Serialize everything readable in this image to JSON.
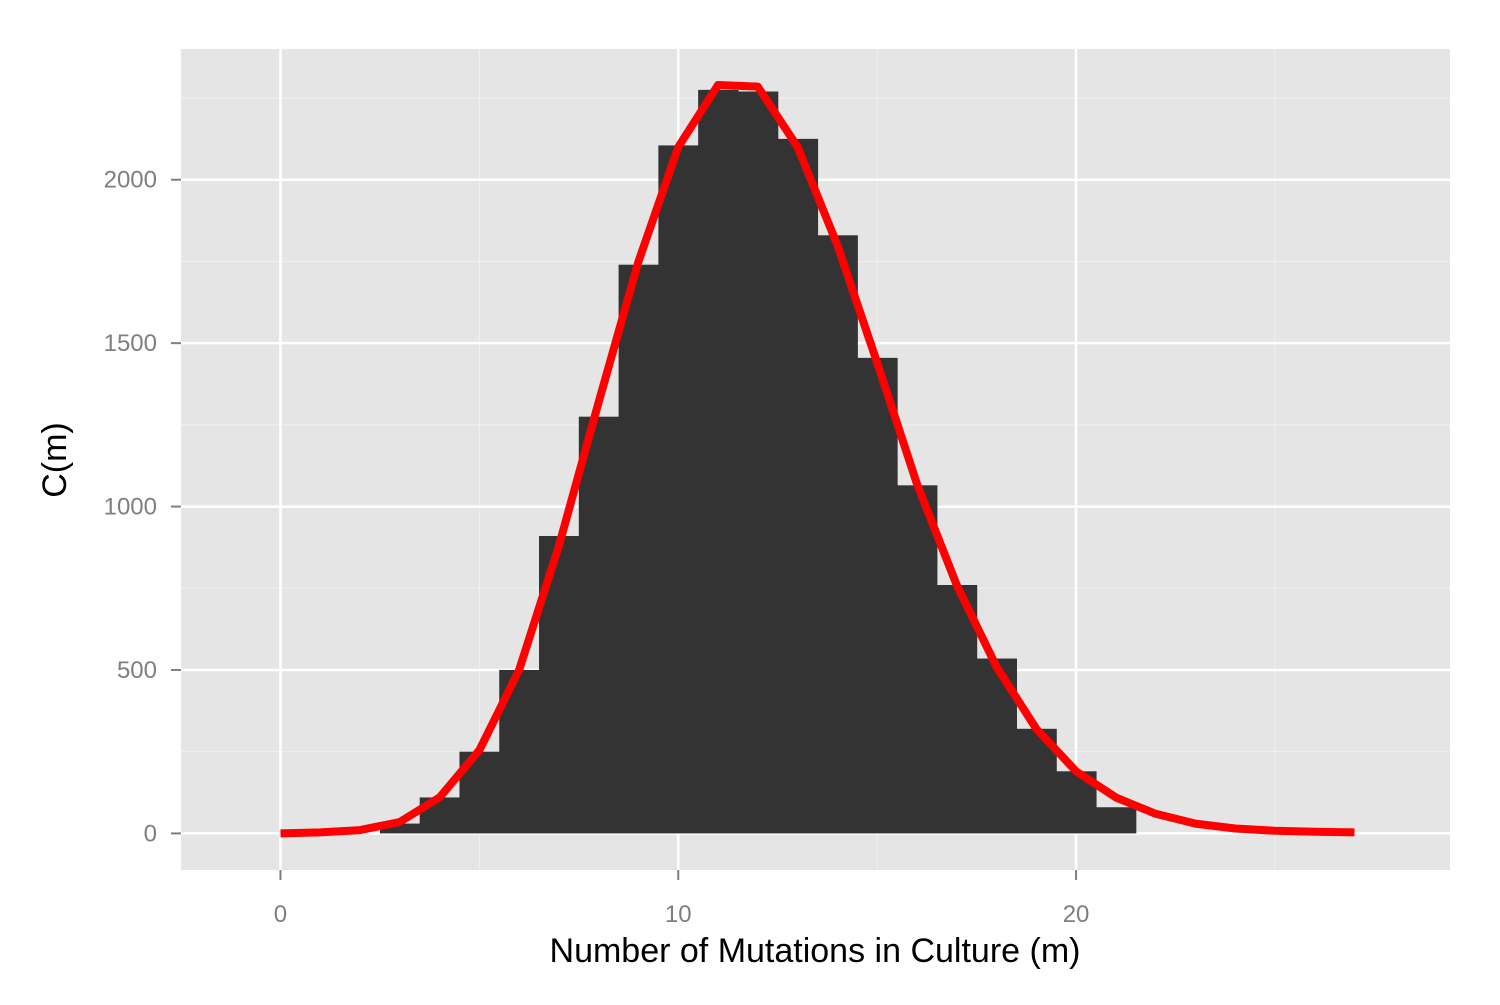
{
  "chart_data": {
    "type": "bar",
    "title": "",
    "xlabel": "Number of Mutations in Culture (m)",
    "ylabel": "C(m)",
    "xlim": [
      -2.5,
      29.4
    ],
    "ylim": [
      -112,
      2400
    ],
    "x_ticks": [
      0,
      10,
      20
    ],
    "y_ticks": [
      0,
      500,
      1000,
      1500,
      2000
    ],
    "x_tick_labels": [
      "0",
      "10",
      "20"
    ],
    "y_tick_labels": [
      "0",
      "500",
      "1000",
      "1500",
      "2000"
    ],
    "grid": true,
    "bin_width": 1,
    "histogram": {
      "name": "",
      "color": "#333333",
      "bins": [
        {
          "x": 3,
          "value": 30
        },
        {
          "x": 4,
          "value": 110
        },
        {
          "x": 5,
          "value": 250
        },
        {
          "x": 6,
          "value": 500
        },
        {
          "x": 7,
          "value": 910
        },
        {
          "x": 8,
          "value": 1275
        },
        {
          "x": 9,
          "value": 1740
        },
        {
          "x": 10,
          "value": 2105
        },
        {
          "x": 11,
          "value": 2275
        },
        {
          "x": 12,
          "value": 2270
        },
        {
          "x": 13,
          "value": 2125
        },
        {
          "x": 14,
          "value": 1830
        },
        {
          "x": 15,
          "value": 1455
        },
        {
          "x": 16,
          "value": 1065
        },
        {
          "x": 17,
          "value": 760
        },
        {
          "x": 18,
          "value": 535
        },
        {
          "x": 19,
          "value": 320
        },
        {
          "x": 20,
          "value": 190
        },
        {
          "x": 21,
          "value": 80
        }
      ]
    },
    "curve": {
      "name": "",
      "color": "#ff0000",
      "x": [
        0,
        1,
        2,
        3,
        4,
        5,
        6,
        7,
        8,
        9,
        10,
        11,
        12,
        13,
        14,
        15,
        16,
        17,
        18,
        19,
        20,
        21,
        22,
        23,
        24,
        25,
        26,
        27
      ],
      "y": [
        0,
        3,
        10,
        35,
        110,
        255,
        500,
        880,
        1320,
        1750,
        2100,
        2290,
        2285,
        2100,
        1800,
        1440,
        1070,
        760,
        510,
        320,
        190,
        110,
        60,
        30,
        15,
        8,
        5,
        3
      ]
    }
  }
}
